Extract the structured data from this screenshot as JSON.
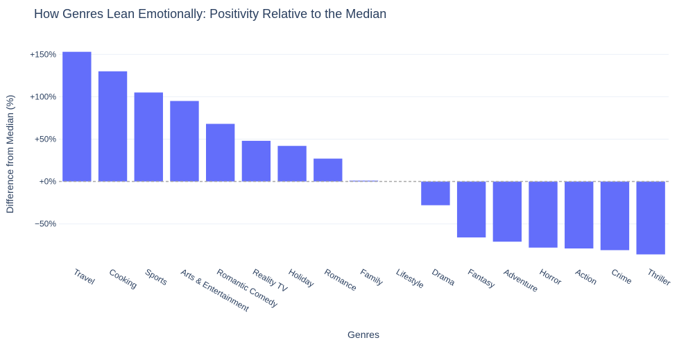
{
  "chart_data": {
    "type": "bar",
    "title": "How Genres Lean Emotionally: Positivity Relative to the Median",
    "xlabel": "Genres",
    "ylabel": "Difference from Median (%)",
    "categories": [
      "Travel",
      "Cooking",
      "Sports",
      "Arts & Entertainment",
      "Romantic Comedy",
      "Reality TV",
      "Holiday",
      "Romance",
      "Family",
      "Lifestyle",
      "Drama",
      "Fantasy",
      "Adventure",
      "Horror",
      "Action",
      "Crime",
      "Thriller"
    ],
    "values": [
      153,
      130,
      105,
      95,
      68,
      48,
      42,
      27,
      1,
      0,
      -28,
      -66,
      -71,
      -78,
      -79,
      -81,
      -86
    ],
    "ylim": [
      -97,
      165
    ],
    "yticks": [
      150,
      100,
      50,
      0,
      -50
    ],
    "ytick_labels": [
      "+150%",
      "+100%",
      "+50%",
      "+0%",
      "−50%"
    ],
    "grid": true,
    "reference_line": 0,
    "bar_color": "#636efa",
    "grid_color": "#ebf0f8",
    "text_color": "#2a3f5f",
    "reference_line_color": "#a8a8a8"
  }
}
